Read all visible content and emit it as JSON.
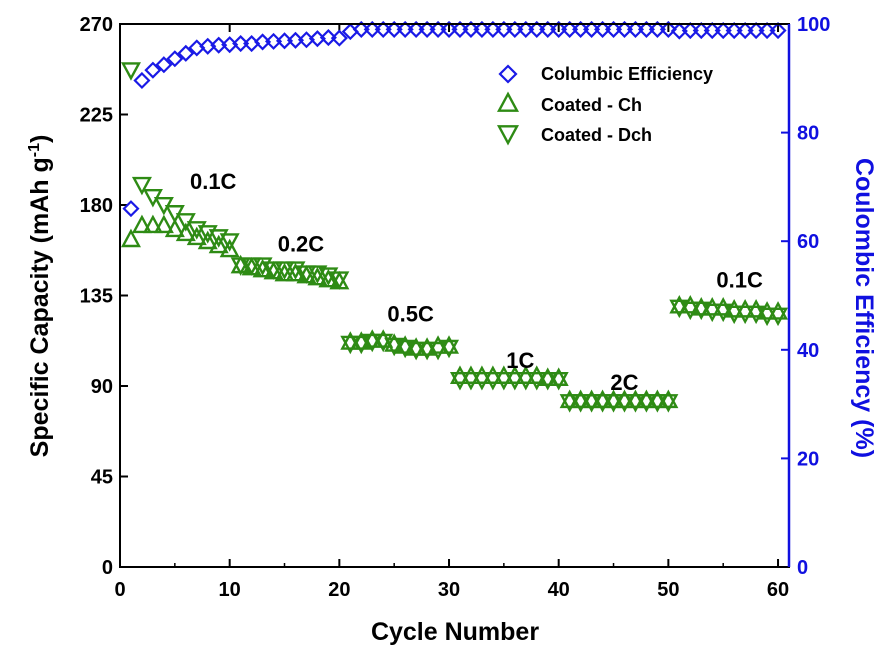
{
  "chart_data": {
    "type": "scatter",
    "title": "",
    "xlabel": "Cycle Number",
    "ylabel_left": "Specific Capacity (mAh g",
    "ylabel_left_superscript": "-1",
    "ylabel_left_end": ")",
    "ylabel_right": "Coulombic Efficiency (%)",
    "xlim": [
      0,
      61
    ],
    "ylim_left": [
      0,
      270
    ],
    "ylim_right": [
      0,
      100
    ],
    "x_ticks": [
      "0",
      "10",
      "20",
      "30",
      "40",
      "50",
      "60"
    ],
    "y_ticks_left": [
      "0",
      "45",
      "90",
      "135",
      "180",
      "225",
      "270"
    ],
    "y_ticks_right": [
      "0",
      "20",
      "40",
      "60",
      "80",
      "100"
    ],
    "legend": {
      "placement": "top-right",
      "entries": [
        "Columbic Efficiency",
        "Coated - Ch",
        "Coated - Dch"
      ]
    },
    "annotations": [
      {
        "text": "0.1C",
        "x": 8.5,
        "y": 188
      },
      {
        "text": "0.2C",
        "x": 16.5,
        "y": 157
      },
      {
        "text": "0.5C",
        "x": 26.5,
        "y": 122
      },
      {
        "text": "1C",
        "x": 36.5,
        "y": 99
      },
      {
        "text": "2C",
        "x": 46,
        "y": 88
      },
      {
        "text": "0.1C",
        "x": 56.5,
        "y": 139
      }
    ],
    "colors": {
      "ce": "#1a1ae6",
      "charge": "#2e8b14",
      "discharge": "#2e8b14",
      "right_axis": "#1010e0"
    },
    "series": [
      {
        "name": "Columbic Efficiency",
        "axis": "right",
        "marker": "diamond",
        "x": [
          1,
          2,
          3,
          4,
          5,
          6,
          7,
          8,
          9,
          10,
          11,
          12,
          13,
          14,
          15,
          16,
          17,
          18,
          19,
          20,
          21,
          22,
          23,
          24,
          25,
          26,
          27,
          28,
          29,
          30,
          31,
          32,
          33,
          34,
          35,
          36,
          37,
          38,
          39,
          40,
          41,
          42,
          43,
          44,
          45,
          46,
          47,
          48,
          49,
          50,
          51,
          52,
          53,
          54,
          55,
          56,
          57,
          58,
          59,
          60
        ],
        "values": [
          66,
          89.6,
          91.5,
          92.5,
          93.6,
          94.6,
          95.6,
          95.9,
          96.1,
          96.2,
          96.4,
          96.4,
          96.7,
          96.8,
          96.9,
          97.0,
          97.1,
          97.3,
          97.5,
          97.4,
          98.6,
          99.0,
          99.0,
          99.0,
          99.0,
          99.0,
          99.0,
          99.0,
          99.0,
          99.0,
          99.0,
          99.0,
          99.0,
          99.0,
          99.0,
          99.0,
          99.0,
          99.0,
          99.0,
          99.0,
          99.0,
          99.0,
          99.0,
          99.0,
          99.0,
          99.0,
          99.0,
          99.0,
          99.0,
          99.0,
          98.7,
          98.8,
          98.8,
          98.8,
          98.8,
          98.8,
          98.8,
          98.8,
          98.8,
          98.8
        ]
      },
      {
        "name": "Coated - Ch",
        "axis": "left",
        "marker": "triangle-up",
        "x": [
          1,
          2,
          3,
          4,
          5,
          6,
          7,
          8,
          9,
          10,
          11,
          12,
          13,
          14,
          15,
          16,
          17,
          18,
          19,
          20,
          21,
          22,
          23,
          24,
          25,
          26,
          27,
          28,
          29,
          30,
          31,
          32,
          33,
          34,
          35,
          36,
          37,
          38,
          39,
          40,
          41,
          42,
          43,
          44,
          45,
          46,
          47,
          48,
          49,
          50,
          51,
          52,
          53,
          54,
          55,
          56,
          57,
          58,
          59,
          60
        ],
        "values": [
          163,
          170,
          170,
          170,
          168,
          166,
          164,
          162,
          160,
          158,
          150,
          149,
          148,
          147,
          146,
          146,
          145,
          144,
          143,
          142,
          112,
          112,
          113,
          113,
          111,
          110,
          109,
          109,
          110,
          110,
          95,
          95,
          95,
          95,
          95,
          95,
          95,
          95,
          94,
          94,
          83,
          83,
          83,
          83,
          83,
          83,
          83,
          83,
          83,
          83,
          130,
          130,
          129,
          129,
          129,
          128,
          128,
          128,
          127,
          127
        ]
      },
      {
        "name": "Coated - Dch",
        "axis": "left",
        "marker": "triangle-down",
        "x": [
          1,
          2,
          3,
          4,
          5,
          6,
          7,
          8,
          9,
          10,
          11,
          12,
          13,
          14,
          15,
          16,
          17,
          18,
          19,
          20,
          21,
          22,
          23,
          24,
          25,
          26,
          27,
          28,
          29,
          30,
          31,
          32,
          33,
          34,
          35,
          36,
          37,
          38,
          39,
          40,
          41,
          42,
          43,
          44,
          45,
          46,
          47,
          48,
          49,
          50,
          51,
          52,
          53,
          54,
          55,
          56,
          57,
          58,
          59,
          60
        ],
        "values": [
          247,
          190,
          184,
          180,
          176,
          172,
          168,
          166,
          164,
          162,
          150,
          150,
          150,
          148,
          148,
          148,
          146,
          146,
          145,
          143,
          111,
          111,
          112,
          112,
          110,
          109,
          108,
          108,
          108,
          109,
          93,
          93,
          93,
          93,
          93,
          93,
          93,
          93,
          93,
          93,
          82,
          82,
          82,
          82,
          82,
          82,
          82,
          82,
          82,
          82,
          129,
          128,
          128,
          127,
          127,
          126,
          126,
          126,
          125,
          125
        ]
      }
    ]
  }
}
